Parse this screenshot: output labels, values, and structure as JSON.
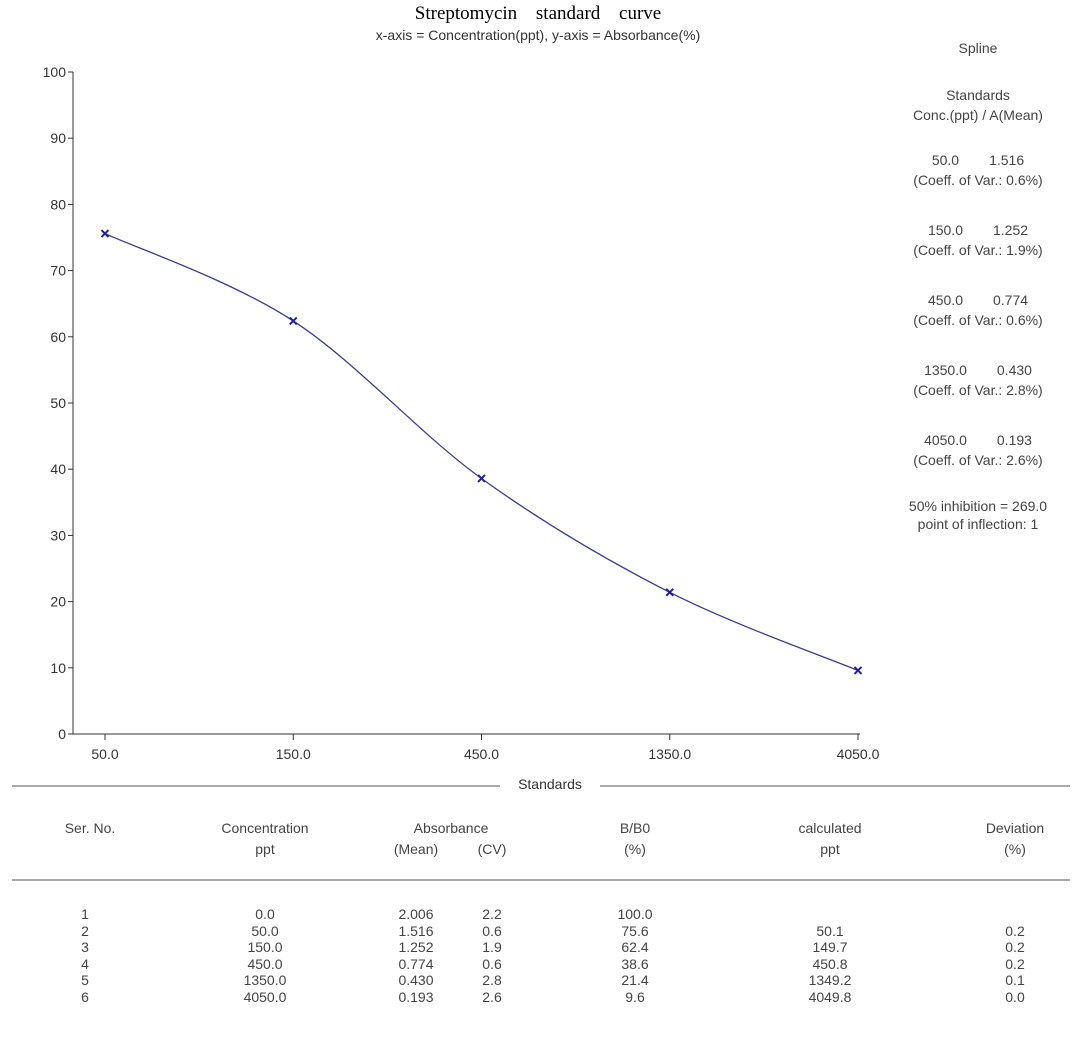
{
  "title": "Streptomycin standard curve",
  "subtitle": "x-axis = Concentration(ppt), y-axis = Absorbance(%)",
  "side_panel": {
    "method": "Spline",
    "standards_heading": "Standards",
    "standards_subheading": "Conc.(ppt) / A(Mean)",
    "standards": [
      {
        "conc": "50.0",
        "abs": "1.516",
        "cv": "(Coeff. of Var.: 0.6%)"
      },
      {
        "conc": "150.0",
        "abs": "1.252",
        "cv": "(Coeff. of Var.: 1.9%)"
      },
      {
        "conc": "450.0",
        "abs": "0.774",
        "cv": "(Coeff. of Var.: 0.6%)"
      },
      {
        "conc": "1350.0",
        "abs": "0.430",
        "cv": "(Coeff. of Var.: 2.8%)"
      },
      {
        "conc": "4050.0",
        "abs": "0.193",
        "cv": "(Coeff. of Var.: 2.6%)"
      }
    ],
    "inhibition": "50% inhibition = 269.0",
    "inflection": "point of inflection: 1"
  },
  "chart_data": {
    "type": "line",
    "title": "Streptomycin standard curve",
    "subtitle": "x-axis = Concentration(ppt), y-axis = Absorbance(%)",
    "xlabel": "",
    "ylabel": "",
    "x_scale": "log",
    "categories": [
      "50.0",
      "150.0",
      "450.0",
      "1350.0",
      "4050.0"
    ],
    "x": [
      50,
      150,
      450,
      1350,
      4050
    ],
    "y": [
      75.6,
      62.4,
      38.6,
      21.4,
      9.6
    ],
    "ylim": [
      0,
      100
    ],
    "yticks": [
      0,
      10,
      20,
      30,
      40,
      50,
      60,
      70,
      80,
      90,
      100
    ],
    "grid": false,
    "marker": "x",
    "line_color": "#3a3a9e",
    "marker_color": "#1f1fa8"
  },
  "section_label": "Standards",
  "table": {
    "headers": {
      "ser_no": "Ser. No.",
      "conc_line1": "Concentration",
      "conc_line2": "ppt",
      "abs_line1": "Absorbance",
      "abs_mean": "(Mean)",
      "abs_cv": "(CV)",
      "bb0_line1": "B/B0",
      "bb0_line2": "(%)",
      "calc_line1": "calculated",
      "calc_line2": "ppt",
      "dev_line1": "Deviation",
      "dev_line2": "(%)"
    },
    "rows": [
      {
        "ser": "1",
        "conc": "0.0",
        "mean": "2.006",
        "cv": "2.2",
        "bb0": "100.0",
        "calc": "",
        "dev": ""
      },
      {
        "ser": "2",
        "conc": "50.0",
        "mean": "1.516",
        "cv": "0.6",
        "bb0": "75.6",
        "calc": "50.1",
        "dev": "0.2"
      },
      {
        "ser": "3",
        "conc": "150.0",
        "mean": "1.252",
        "cv": "1.9",
        "bb0": "62.4",
        "calc": "149.7",
        "dev": "0.2"
      },
      {
        "ser": "4",
        "conc": "450.0",
        "mean": "0.774",
        "cv": "0.6",
        "bb0": "38.6",
        "calc": "450.8",
        "dev": "0.2"
      },
      {
        "ser": "5",
        "conc": "1350.0",
        "mean": "0.430",
        "cv": "2.8",
        "bb0": "21.4",
        "calc": "1349.2",
        "dev": "0.1"
      },
      {
        "ser": "6",
        "conc": "4050.0",
        "mean": "0.193",
        "cv": "2.6",
        "bb0": "9.6",
        "calc": "4049.8",
        "dev": "0.0"
      }
    ]
  }
}
